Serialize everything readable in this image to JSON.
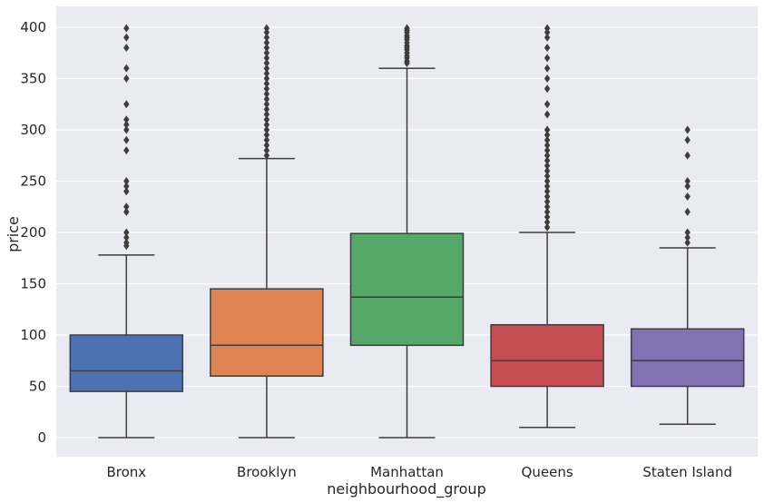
{
  "chart_data": {
    "type": "box",
    "xlabel": "neighbourhood_group",
    "ylabel": "price",
    "ylim": [
      -20,
      418
    ],
    "yticks": [
      0,
      50,
      100,
      150,
      200,
      250,
      300,
      350,
      400
    ],
    "grid": true,
    "categories": [
      "Bronx",
      "Brooklyn",
      "Manhattan",
      "Queens",
      "Staten Island"
    ],
    "series": [
      {
        "category": "Bronx",
        "color": "#4c72b0",
        "whisker_low": 0,
        "q1": 45,
        "median": 65,
        "q3": 100,
        "whisker_high": 178,
        "outliers": [
          187,
          190,
          195,
          200,
          220,
          225,
          240,
          245,
          250,
          280,
          290,
          300,
          305,
          310,
          325,
          350,
          360,
          380,
          390,
          399
        ]
      },
      {
        "category": "Brooklyn",
        "color": "#dd8452",
        "whisker_low": 0,
        "q1": 60,
        "median": 90,
        "q3": 145,
        "whisker_high": 272,
        "outliers": [
          275,
          280,
          285,
          290,
          295,
          300,
          305,
          310,
          315,
          320,
          325,
          330,
          335,
          340,
          345,
          350,
          355,
          360,
          365,
          370,
          375,
          380,
          385,
          390,
          395,
          399
        ]
      },
      {
        "category": "Manhattan",
        "color": "#55a868",
        "whisker_low": 0,
        "q1": 90,
        "median": 137,
        "q3": 199,
        "whisker_high": 360,
        "outliers": [
          365,
          367,
          370,
          372,
          375,
          378,
          380,
          382,
          385,
          388,
          390,
          392,
          395,
          397,
          399
        ]
      },
      {
        "category": "Queens",
        "color": "#c44e52",
        "whisker_low": 10,
        "q1": 50,
        "median": 75,
        "q3": 110,
        "whisker_high": 200,
        "outliers": [
          205,
          210,
          215,
          220,
          225,
          230,
          235,
          240,
          245,
          250,
          255,
          260,
          265,
          270,
          275,
          280,
          285,
          290,
          295,
          300,
          315,
          325,
          340,
          350,
          360,
          370,
          380,
          390,
          395,
          399
        ]
      },
      {
        "category": "Staten Island",
        "color": "#8172b3",
        "whisker_low": 13,
        "q1": 50,
        "median": 75,
        "q3": 106,
        "whisker_high": 185,
        "outliers": [
          190,
          195,
          200,
          220,
          235,
          245,
          250,
          275,
          290,
          300
        ]
      }
    ]
  }
}
